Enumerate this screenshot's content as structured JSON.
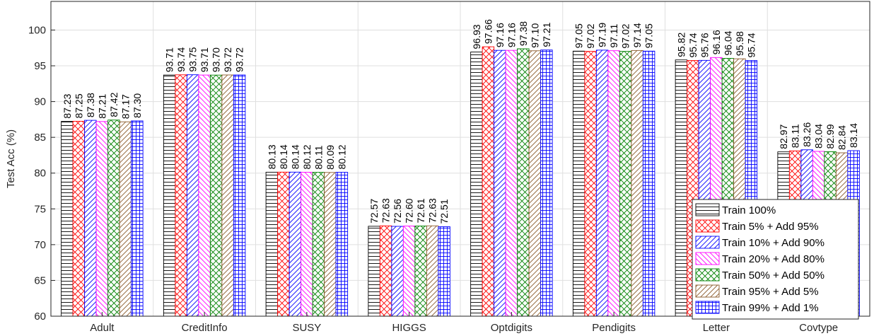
{
  "chart_data": {
    "type": "bar",
    "title": "",
    "xlabel": "",
    "ylabel": "Test Acc (%)",
    "ylim": [
      60,
      104
    ],
    "yticks": [
      60,
      65,
      70,
      75,
      80,
      85,
      90,
      95,
      100
    ],
    "grid": true,
    "legend_position": "bottom-right",
    "categories": [
      "Adult",
      "CreditInfo",
      "SUSY",
      "HIGGS",
      "Optdigits",
      "Pendigits",
      "Letter",
      "Covtype"
    ],
    "series": [
      {
        "name": "Train 100%",
        "color": "#000000",
        "pattern": "hlines",
        "values": [
          87.23,
          93.71,
          80.13,
          72.57,
          96.93,
          97.05,
          95.82,
          82.97
        ],
        "labels": [
          "87.23",
          "93.71",
          "80.13",
          "72.57",
          "96.93",
          "97.05",
          "95.82",
          "82.97"
        ]
      },
      {
        "name": "Train 5% + Add 95%",
        "color": "#ff0000",
        "pattern": "crosshatch",
        "values": [
          87.25,
          93.74,
          80.14,
          72.63,
          97.66,
          97.02,
          95.74,
          83.11
        ],
        "labels": [
          "87.25",
          "93.74",
          "80.14",
          "72.63",
          "97.66",
          "97.02",
          "95.74",
          "83.11"
        ]
      },
      {
        "name": "Train 10% + Add 90%",
        "color": "#0000ff",
        "pattern": "diag-up",
        "values": [
          87.38,
          93.75,
          80.14,
          72.56,
          97.16,
          97.19,
          95.76,
          83.26
        ],
        "labels": [
          "87.38",
          "93.75",
          "80.14",
          "72.56",
          "97.16",
          "97.19",
          "95.76",
          "83.26"
        ]
      },
      {
        "name": "Train 20% + Add 80%",
        "color": "#ff00ff",
        "pattern": "diag-down",
        "values": [
          87.21,
          93.71,
          80.12,
          72.6,
          97.16,
          97.11,
          96.16,
          83.04
        ],
        "labels": [
          "87.21",
          "93.71",
          "80.12",
          "72.60",
          "97.16",
          "97.11",
          "96.16",
          "83.04"
        ]
      },
      {
        "name": "Train 50% + Add 50%",
        "color": "#008000",
        "pattern": "crosshatch",
        "values": [
          87.42,
          93.7,
          80.11,
          72.61,
          97.38,
          97.02,
          96.04,
          82.99
        ],
        "labels": [
          "87.42",
          "93.70",
          "80.11",
          "72.61",
          "97.38",
          "97.02",
          "96.04",
          "82.99"
        ]
      },
      {
        "name": "Train 95% + Add 5%",
        "color": "#8b5a2b",
        "pattern": "diag-up",
        "values": [
          87.17,
          93.72,
          80.09,
          72.63,
          97.1,
          97.14,
          95.98,
          82.84
        ],
        "labels": [
          "87.17",
          "93.72",
          "80.09",
          "72.63",
          "97.10",
          "97.14",
          "95.98",
          "82.84"
        ]
      },
      {
        "name": "Train 99% + Add 1%",
        "color": "#0000ff",
        "pattern": "grid",
        "values": [
          87.3,
          93.72,
          80.12,
          72.51,
          97.21,
          97.05,
          95.74,
          83.14
        ],
        "labels": [
          "87.30",
          "93.72",
          "80.12",
          "72.51",
          "97.21",
          "97.05",
          "95.74",
          "83.14"
        ]
      }
    ]
  }
}
